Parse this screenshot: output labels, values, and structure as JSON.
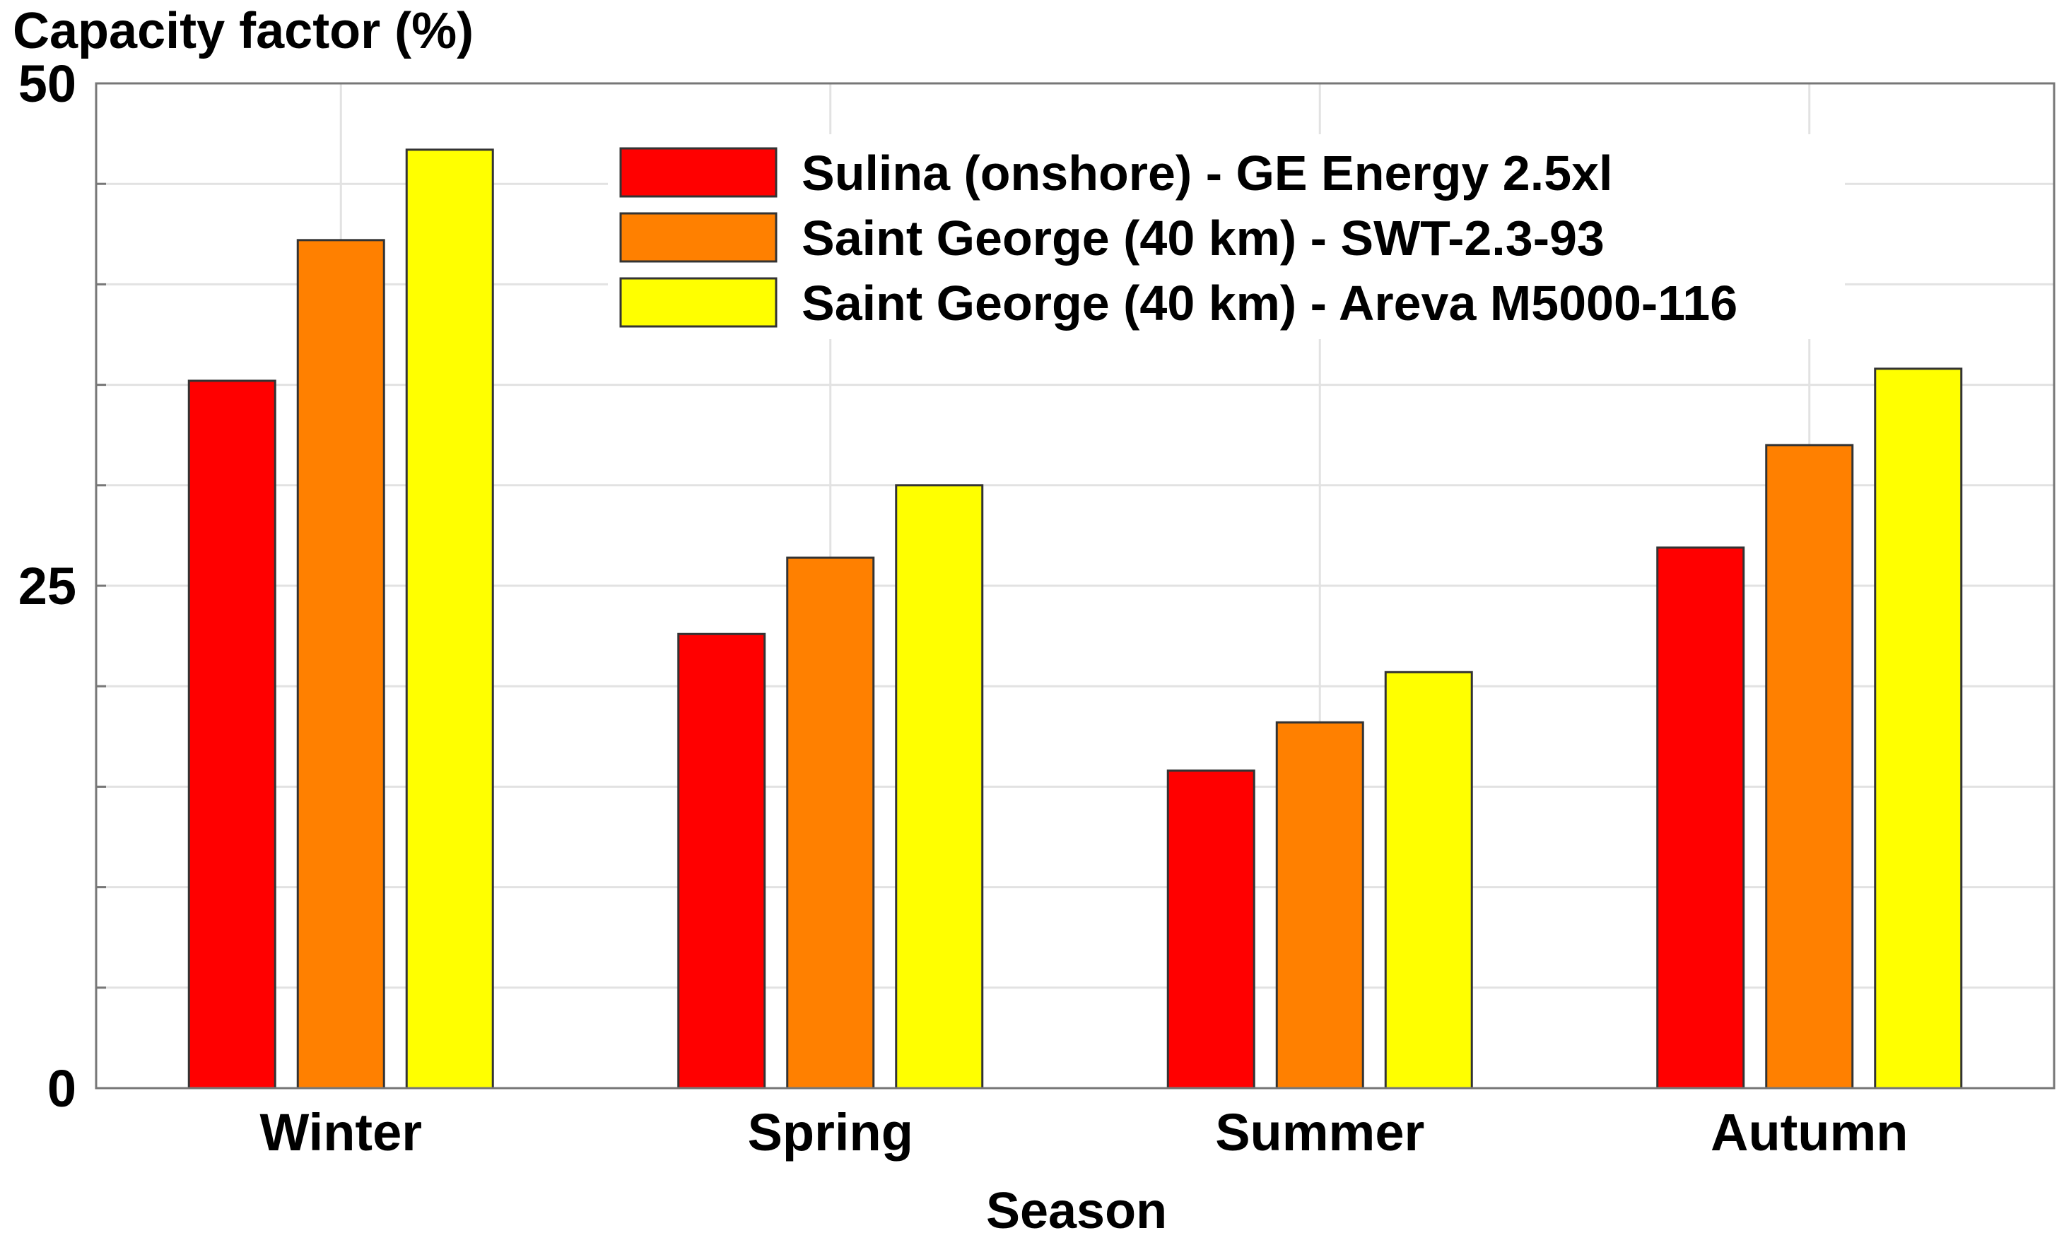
{
  "chart_data": {
    "type": "bar",
    "ylabel": "Capacity factor  (%)",
    "xlabel": "Season",
    "categories": [
      "Winter",
      "Spring",
      "Summer",
      "Autumn"
    ],
    "ylim": [
      0,
      50
    ],
    "yticks": [
      0,
      25,
      50
    ],
    "ygrid_step": 5,
    "grid": true,
    "legend_position": "top-right",
    "series": [
      {
        "name": "Sulina (onshore) - GE Energy 2.5xl",
        "color": "#ff0000",
        "values": [
          35.2,
          22.6,
          15.8,
          26.9
        ]
      },
      {
        "name": "Saint George (40 km) - SWT-2.3-93",
        "color": "#ff8000",
        "values": [
          42.2,
          26.4,
          18.2,
          32.0
        ]
      },
      {
        "name": "Saint George (40 km) - Areva  M5000-116",
        "color": "#ffff00",
        "values": [
          46.7,
          30.0,
          20.7,
          35.8
        ]
      }
    ]
  }
}
